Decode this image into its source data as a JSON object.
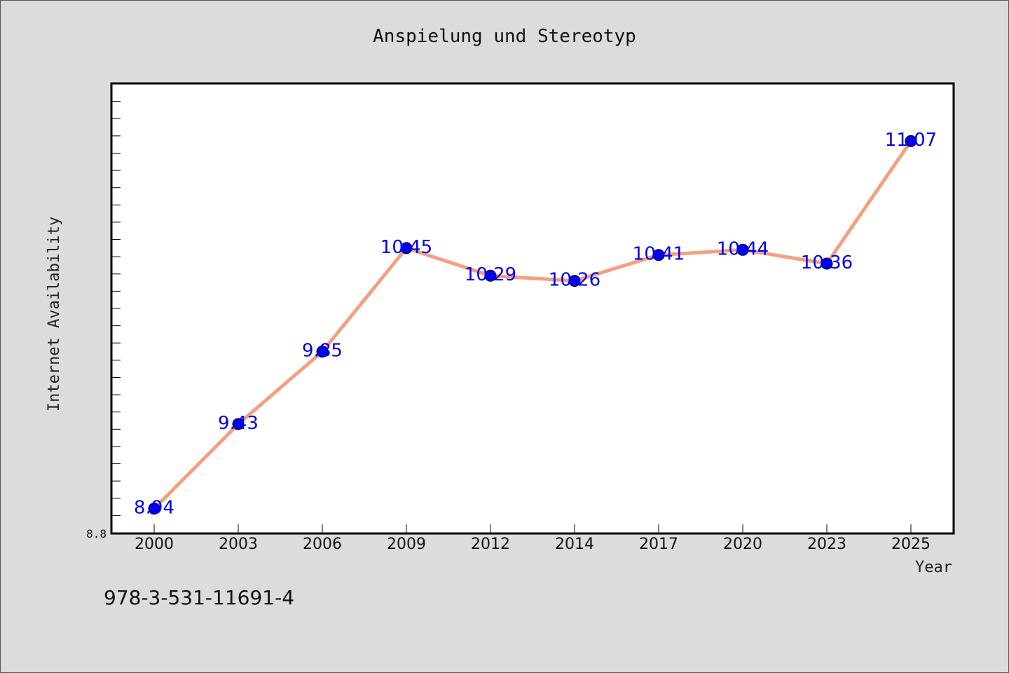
{
  "chart_data": {
    "type": "line",
    "title": "Anspielung und Stereotyp",
    "xlabel": "Year",
    "ylabel": "Internet Availability",
    "categories": [
      "2000",
      "2003",
      "2006",
      "2009",
      "2012",
      "2014",
      "2017",
      "2020",
      "2023",
      "2025"
    ],
    "series": [
      {
        "values": [
          8.94,
          9.43,
          9.85,
          10.45,
          10.29,
          10.26,
          10.41,
          10.44,
          10.36,
          11.07
        ],
        "line_color": "#f4a07f",
        "marker_color": "#0000ee"
      }
    ],
    "data_labels": [
      "8.94",
      "9.43",
      "9.85",
      "10.45",
      "10.29",
      "10.26",
      "10.41",
      "10.44",
      "10.36",
      "11.07"
    ],
    "ylim": [
      8.8,
      11.4
    ],
    "ytick_labels": [
      "8.8"
    ],
    "grid": false,
    "legend": "none"
  },
  "footnote": "978-3-531-11691-4"
}
